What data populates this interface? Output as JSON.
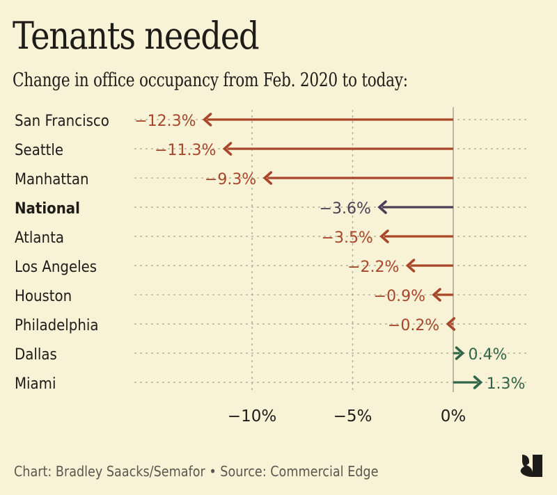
{
  "header": {
    "title": "Tenants needed",
    "subtitle": "Change in office occupancy from Feb. 2020 to today:"
  },
  "footer": {
    "credit": "Chart: Bradley Saacks/Semafor • Source: Commercial Edge",
    "logo_icon": "semafor-logo-icon"
  },
  "colors": {
    "background": "#f8f2d7",
    "negative": "#a8462a",
    "national": "#4a3f55",
    "positive": "#2f6647",
    "grid": "#a9a491",
    "zero_line": "#bdb8a2",
    "text": "#1e1c18"
  },
  "chart_data": {
    "type": "arrow-bar",
    "title": "Tenants needed",
    "subtitle": "Change in office occupancy from Feb. 2020 to today:",
    "xlabel": "",
    "ylabel": "",
    "xlim": [
      -13.5,
      3.8
    ],
    "x_ticks": [
      -10,
      -5,
      0
    ],
    "x_tick_labels": [
      "−10%",
      "−5%",
      "0%"
    ],
    "grid": true,
    "categories": [
      "San Francisco",
      "Seattle",
      "Manhattan",
      "National",
      "Atlanta",
      "Los Angeles",
      "Houston",
      "Philadelphia",
      "Dallas",
      "Miami"
    ],
    "values": [
      -12.3,
      -11.3,
      -9.3,
      -3.6,
      -3.5,
      -2.2,
      -0.9,
      -0.2,
      0.4,
      1.3
    ],
    "value_labels": [
      "−12.3%",
      "−11.3%",
      "−9.3%",
      "−3.6%",
      "−3.5%",
      "−2.2%",
      "−0.9%",
      "−0.2%",
      "0.4%",
      "1.3%"
    ],
    "highlight": [
      "National"
    ]
  }
}
